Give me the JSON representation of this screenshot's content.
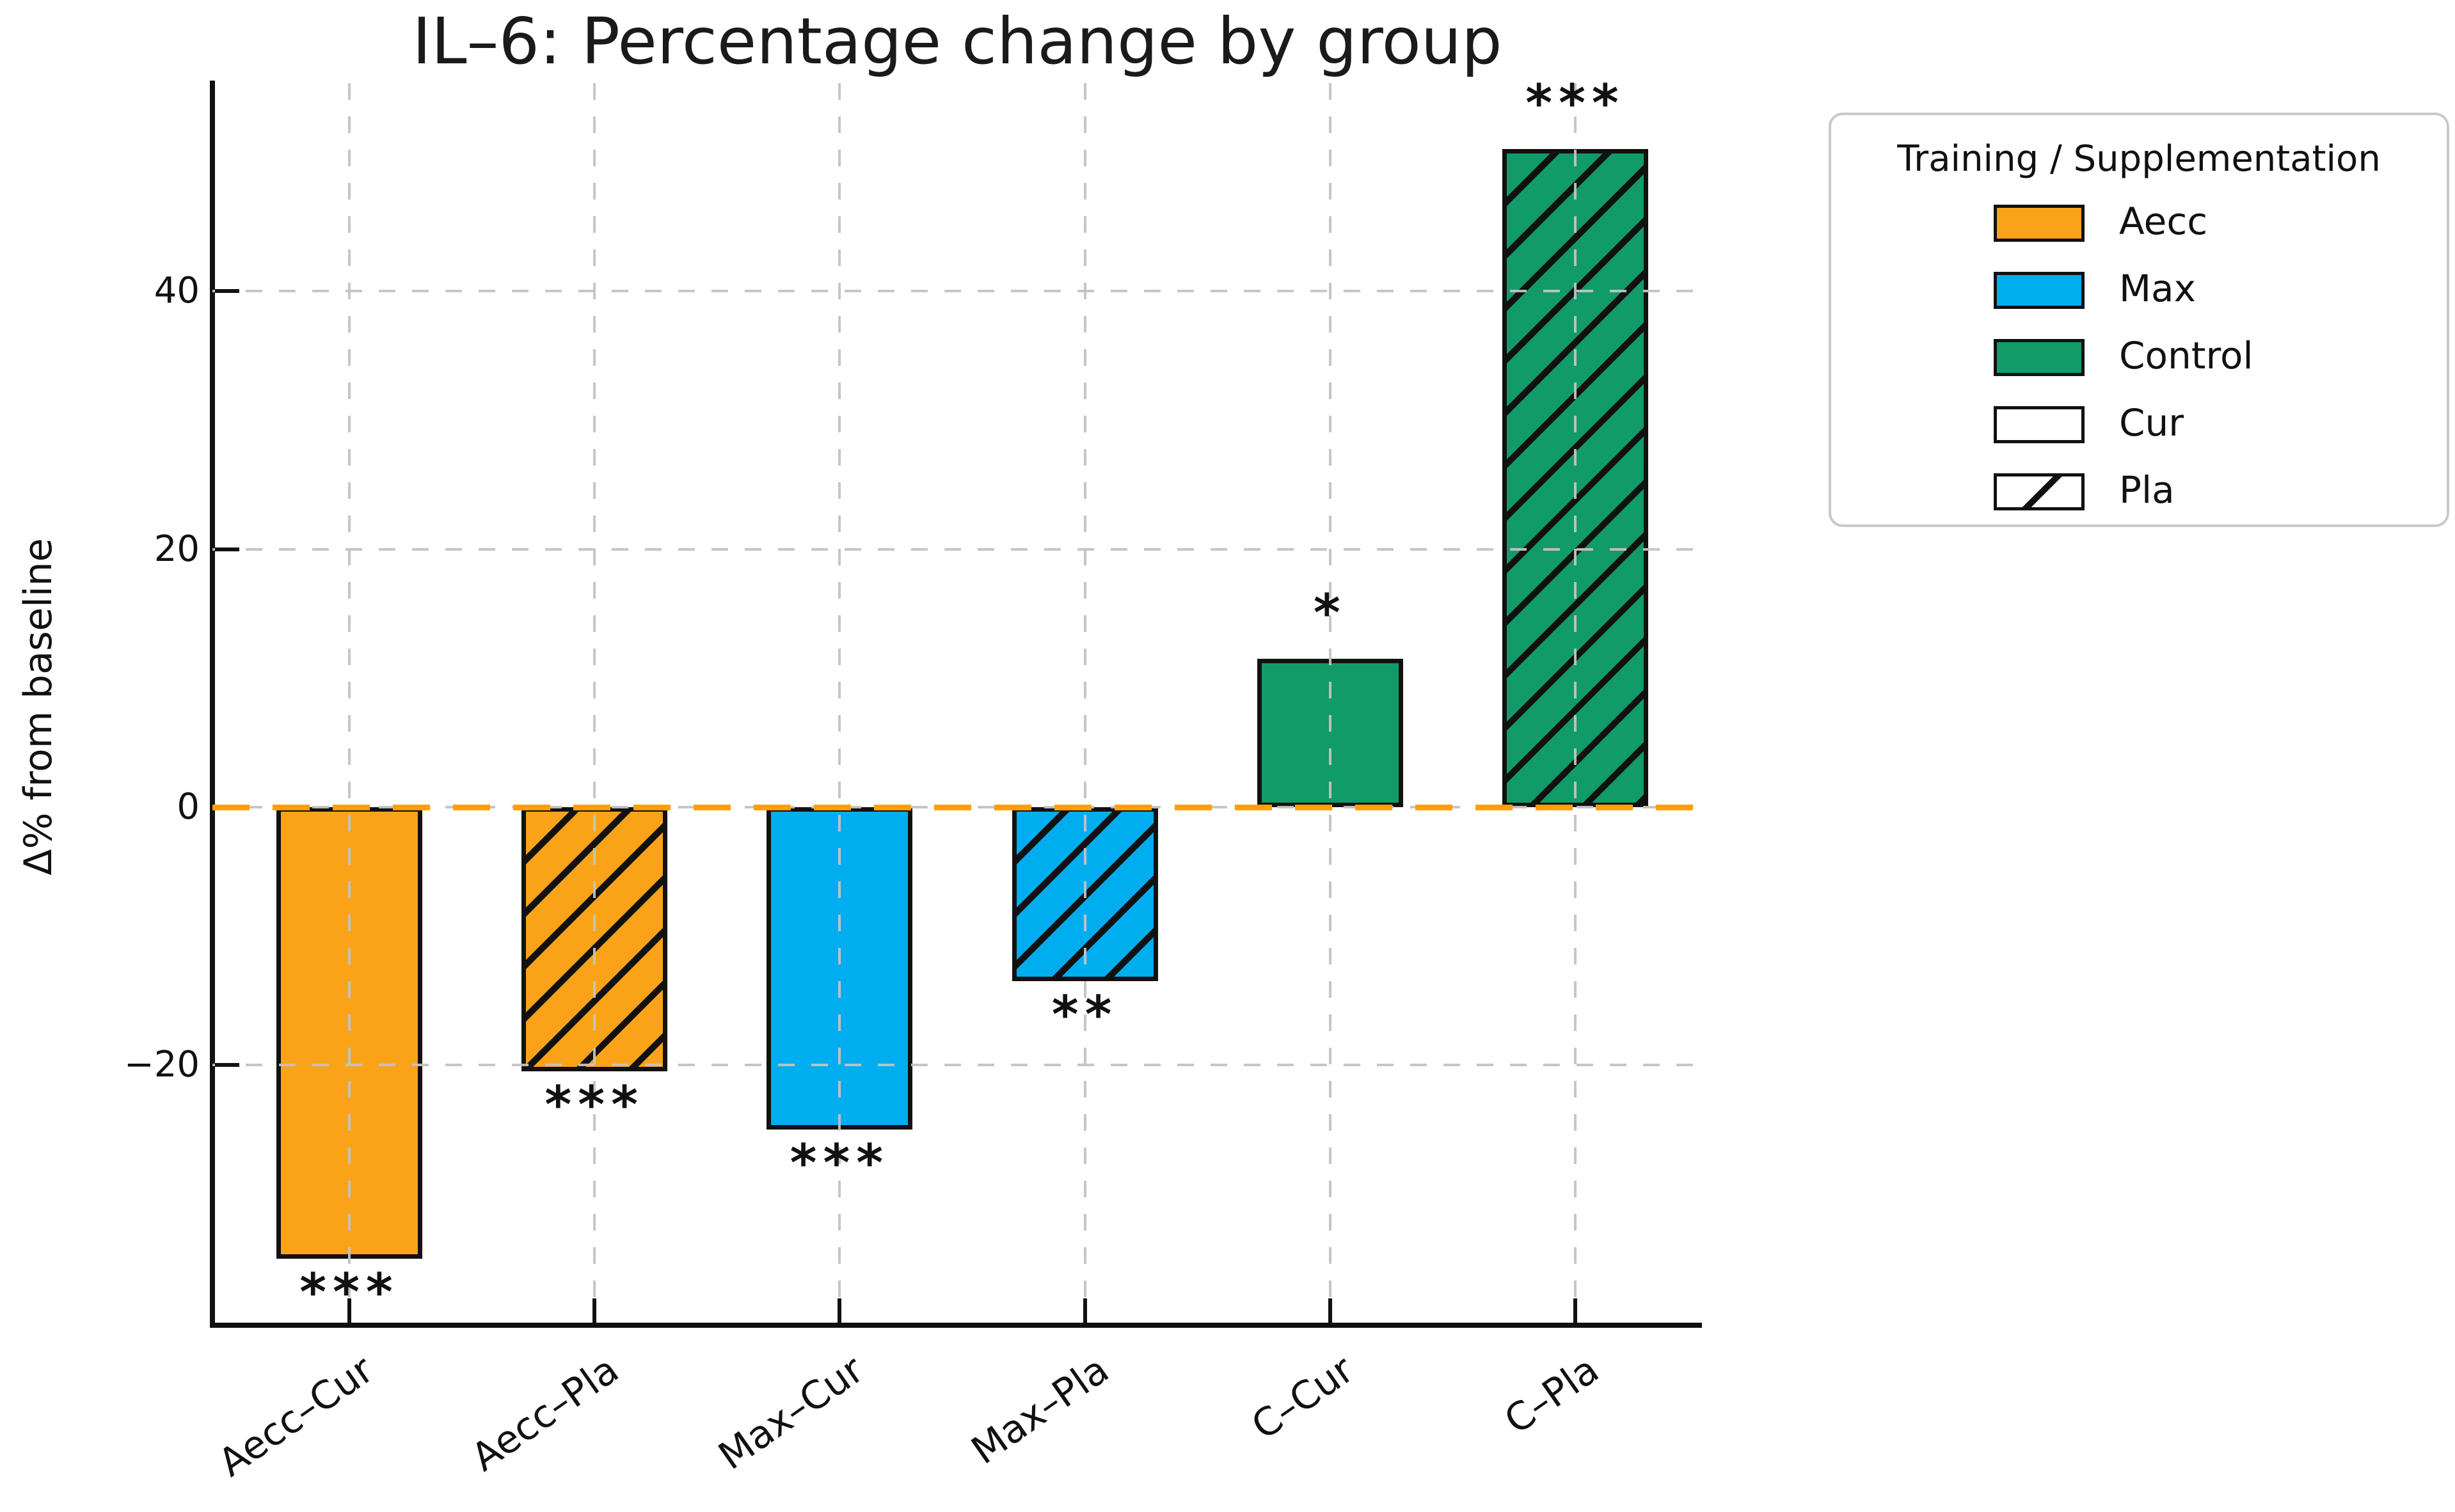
{
  "chart_data": {
    "type": "bar",
    "title": "IL–6: Percentage change by group",
    "xlabel": "",
    "ylabel": "Δ% from baseline",
    "categories": [
      "Aecc–Cur",
      "Aecc–Pla",
      "Max–Cur",
      "Max–Pla",
      "C–Cur",
      "C–Pla"
    ],
    "values": [
      -35,
      -20.5,
      -25,
      -13.5,
      11.5,
      51
    ],
    "significance": [
      "***",
      "***",
      "***",
      "**",
      "*",
      "***"
    ],
    "bar_styles": [
      {
        "group": "Aecc",
        "supplement": "Cur",
        "color": "#FBA318",
        "hatch": false
      },
      {
        "group": "Aecc",
        "supplement": "Pla",
        "color": "#FBA318",
        "hatch": true
      },
      {
        "group": "Max",
        "supplement": "Cur",
        "color": "#00AEEF",
        "hatch": false
      },
      {
        "group": "Max",
        "supplement": "Pla",
        "color": "#00AEEF",
        "hatch": true
      },
      {
        "group": "Control",
        "supplement": "Cur",
        "color": "#119B69",
        "hatch": false
      },
      {
        "group": "Control",
        "supplement": "Pla",
        "color": "#119B69",
        "hatch": true
      }
    ],
    "yticks": [
      -20,
      0,
      20,
      40
    ],
    "ytick_labels": [
      "−20",
      "0",
      "20",
      "40"
    ],
    "ylim": [
      -40,
      56
    ],
    "grid": {
      "visible": true,
      "style": "dashed",
      "color": "#c3c3c3",
      "on_top_of_bars": true
    },
    "zero_line": {
      "value": 0,
      "color": "#FFA000",
      "style": "dashed"
    },
    "legend": {
      "title": "Training / Supplementation",
      "position": "top-right-outside",
      "entries": [
        {
          "label": "Aecc",
          "color": "#FBA318",
          "hatch": false
        },
        {
          "label": "Max",
          "color": "#00AEEF",
          "hatch": false
        },
        {
          "label": "Control",
          "color": "#119B69",
          "hatch": false
        },
        {
          "label": "Cur",
          "color": "#FFFFFF",
          "hatch": false
        },
        {
          "label": "Pla",
          "color": "#FFFFFF",
          "hatch": true
        }
      ]
    }
  }
}
